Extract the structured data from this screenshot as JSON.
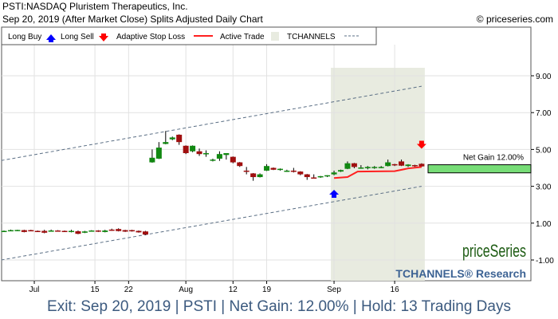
{
  "header": {
    "title": "PSTI:NASDAQ Pluristem Therapeutics, Inc.",
    "subtitle": "Sep 20, 2019 (After Market Close)  Splits Adjusted Daily Chart",
    "copyright": "© priceseries.com"
  },
  "legend": {
    "long_buy": "Long Buy",
    "long_sell": "Long Sell",
    "stop_loss": "Adaptive Stop Loss",
    "active_trade": "Active Trade",
    "tchannels": "TCHANNELS"
  },
  "logo": {
    "brand": "priceSeries",
    "sub": "TCHANNELS® Research"
  },
  "footer": "Exit: Sep 20, 2019 | PSTI | Net Gain: 12.00% | Hold: 13 Trading Days",
  "colors": {
    "up": "#118811",
    "down": "#a00f0f",
    "stop": "#ff2020",
    "buy": "#0000ff",
    "sell": "#ff0000",
    "active": "#e8ebe0",
    "gain": "#77dd77",
    "channel": "#5a6e84"
  },
  "chart_data": {
    "type": "candlestick",
    "ylim": [
      -1.8,
      11.3
    ],
    "yticks": [
      9,
      7,
      5,
      3,
      1,
      -1
    ],
    "ytick_labels": [
      "9.00",
      "7.00",
      "5.00",
      "3.00",
      "1.00",
      "-1.00"
    ],
    "xticks": [
      {
        "i": 4.5,
        "label": "Jul"
      },
      {
        "i": 13.5,
        "label": "15"
      },
      {
        "i": 18.5,
        "label": "22"
      },
      {
        "i": 27,
        "label": "Aug"
      },
      {
        "i": 34,
        "label": "12"
      },
      {
        "i": 39,
        "label": "19"
      },
      {
        "i": 49,
        "label": "Sep"
      },
      {
        "i": 58,
        "label": "16"
      }
    ],
    "candles": [
      [
        0.57,
        0.6,
        0.55,
        0.58
      ],
      [
        0.58,
        0.65,
        0.56,
        0.62
      ],
      [
        0.6,
        0.64,
        0.57,
        0.63
      ],
      [
        0.62,
        0.64,
        0.5,
        0.52
      ],
      [
        0.62,
        0.64,
        0.56,
        0.58
      ],
      [
        0.58,
        0.6,
        0.52,
        0.54
      ],
      [
        0.58,
        0.64,
        0.45,
        0.48
      ],
      [
        0.55,
        0.65,
        0.54,
        0.6
      ],
      [
        0.6,
        0.62,
        0.54,
        0.56
      ],
      [
        0.58,
        0.6,
        0.52,
        0.55
      ],
      [
        0.52,
        0.64,
        0.5,
        0.58
      ],
      [
        0.56,
        0.6,
        0.4,
        0.42
      ],
      [
        0.48,
        0.58,
        0.46,
        0.55
      ],
      [
        0.56,
        0.62,
        0.54,
        0.6
      ],
      [
        0.6,
        0.62,
        0.52,
        0.55
      ],
      [
        0.52,
        0.64,
        0.5,
        0.6
      ],
      [
        0.65,
        0.7,
        0.58,
        0.6
      ],
      [
        0.68,
        0.72,
        0.55,
        0.57
      ],
      [
        0.62,
        0.64,
        0.52,
        0.54
      ],
      [
        0.62,
        0.64,
        0.54,
        0.56
      ],
      [
        0.58,
        0.6,
        0.48,
        0.5
      ],
      [
        0.55,
        0.58,
        0.35,
        0.38
      ],
      [
        4.3,
        5.0,
        4.28,
        4.55
      ],
      [
        4.5,
        5.4,
        4.48,
        5.1
      ],
      [
        5.3,
        6.0,
        5.28,
        5.4
      ],
      [
        5.55,
        5.7,
        5.5,
        5.65
      ],
      [
        5.8,
        5.82,
        5.25,
        5.4
      ],
      [
        5.2,
        5.22,
        4.75,
        4.8
      ],
      [
        4.9,
        5.22,
        4.85,
        5.2
      ],
      [
        4.9,
        5.05,
        4.65,
        4.75
      ],
      [
        4.75,
        4.95,
        4.6,
        4.8
      ],
      [
        4.4,
        4.5,
        4.35,
        4.45
      ],
      [
        4.5,
        4.9,
        4.38,
        4.75
      ],
      [
        4.7,
        4.8,
        4.45,
        4.8
      ],
      [
        4.6,
        4.62,
        4.25,
        4.3
      ],
      [
        4.3,
        4.32,
        4.05,
        4.1
      ],
      [
        3.85,
        4.05,
        3.65,
        3.84
      ],
      [
        3.7,
        3.72,
        3.3,
        3.5
      ],
      [
        3.5,
        3.7,
        3.48,
        3.65
      ],
      [
        3.85,
        4.2,
        3.83,
        4.1
      ],
      [
        4.0,
        4.02,
        3.88,
        3.9
      ],
      [
        3.9,
        3.97,
        3.85,
        3.95
      ],
      [
        3.82,
        3.9,
        3.78,
        3.85
      ],
      [
        3.85,
        4.0,
        3.75,
        3.83
      ],
      [
        3.8,
        3.82,
        3.6,
        3.65
      ],
      [
        3.65,
        3.67,
        3.35,
        3.5
      ],
      [
        3.48,
        3.65,
        3.42,
        3.47
      ],
      [
        3.5,
        3.56,
        3.46,
        3.55
      ],
      [
        3.55,
        3.6,
        3.5,
        3.6
      ],
      [
        3.65,
        3.85,
        3.6,
        3.75
      ],
      [
        3.8,
        3.9,
        3.78,
        3.88
      ],
      [
        3.95,
        4.35,
        3.93,
        4.25
      ],
      [
        4.25,
        4.27,
        3.98,
        4.05
      ],
      [
        4.0,
        4.15,
        3.95,
        4.02
      ],
      [
        3.98,
        4.1,
        3.92,
        4.05
      ],
      [
        4.0,
        4.1,
        3.95,
        4.05
      ],
      [
        4.0,
        4.1,
        3.98,
        4.05
      ],
      [
        4.1,
        4.45,
        4.08,
        4.3
      ],
      [
        4.2,
        4.22,
        4.1,
        4.15
      ],
      [
        4.35,
        4.45,
        4.1,
        4.12
      ],
      [
        4.1,
        4.2,
        4.05,
        4.18
      ],
      [
        4.15,
        4.17,
        4.05,
        4.1
      ],
      [
        4.22,
        4.25,
        4.06,
        4.08
      ]
    ],
    "stop_loss": [
      [
        49,
        3.45
      ],
      [
        51,
        3.5
      ],
      [
        52.5,
        3.8
      ],
      [
        58,
        3.82
      ],
      [
        60,
        3.97
      ],
      [
        62,
        4.05
      ]
    ],
    "channel_upper": [
      [
        -0.4,
        4.4
      ],
      [
        62,
        8.43
      ]
    ],
    "channel_lower": [
      [
        -0.4,
        -1.0
      ],
      [
        62,
        3.0
      ]
    ],
    "active_trade": {
      "start": 49,
      "end": 62
    },
    "buy_signal": {
      "i": 49,
      "price": 2.55
    },
    "sell_signal": {
      "i": 62,
      "price": 5.3
    },
    "net_gain": {
      "label": "Net Gain 12.00%",
      "entry": 3.73,
      "exit": 4.17
    }
  }
}
